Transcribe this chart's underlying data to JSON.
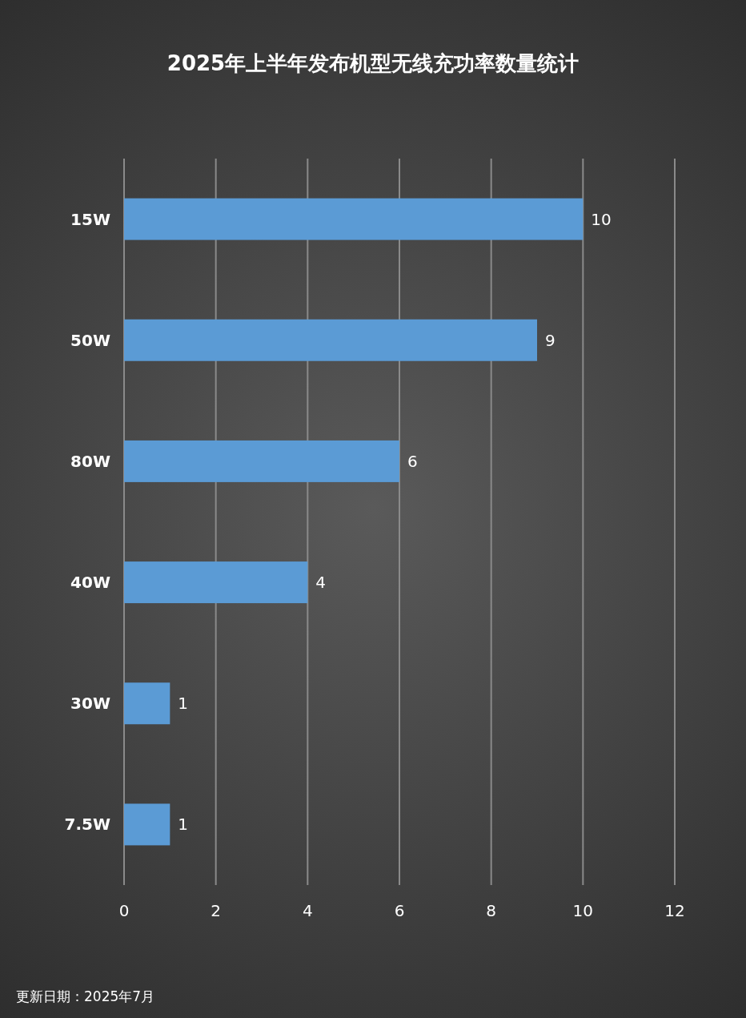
{
  "chart_data": {
    "type": "bar",
    "orientation": "horizontal",
    "title": "2025年上半年发布机型无线充功率数量统计",
    "categories": [
      "15W",
      "50W",
      "80W",
      "40W",
      "30W",
      "7.5W"
    ],
    "values": [
      10,
      9,
      6,
      4,
      1,
      1
    ],
    "color": "#5b9bd5",
    "xlim": [
      0,
      12
    ],
    "xticks": [
      0,
      2,
      4,
      6,
      8,
      10,
      12
    ],
    "grid": "x",
    "data_labels": true,
    "annotations": [
      "更新日期：2025年7月"
    ]
  }
}
